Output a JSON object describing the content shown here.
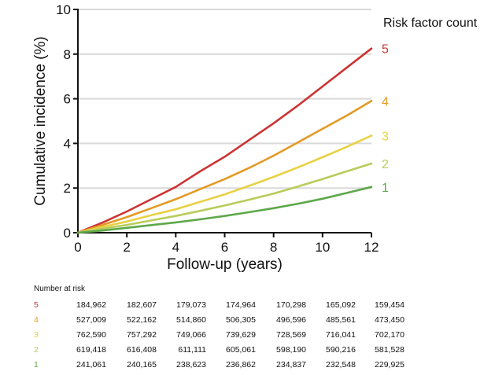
{
  "chart_data": {
    "type": "line",
    "title": "",
    "xlabel": "Follow-up (years)",
    "ylabel": "Cumulative incidence (%)",
    "xlim": [
      0,
      12
    ],
    "ylim": [
      0,
      10
    ],
    "xticks": [
      0,
      2,
      4,
      6,
      8,
      10,
      12
    ],
    "yticks": [
      0,
      2,
      4,
      6,
      8,
      10
    ],
    "grid": "horizontal",
    "legend_title": "Risk factor count",
    "legend_placement": "top-right, labels at line ends",
    "x": [
      0,
      1,
      2,
      3,
      4,
      5,
      6,
      7,
      8,
      9,
      10,
      11,
      12
    ],
    "series": [
      {
        "name": "5",
        "color": "#cc3333",
        "values": [
          0,
          0.45,
          0.95,
          1.5,
          2.05,
          2.75,
          3.4,
          4.15,
          4.9,
          5.7,
          6.55,
          7.4,
          8.25
        ]
      },
      {
        "name": "4",
        "color": "#e39a24",
        "values": [
          0,
          0.35,
          0.7,
          1.1,
          1.5,
          1.95,
          2.4,
          2.9,
          3.45,
          4.05,
          4.65,
          5.25,
          5.9
        ]
      },
      {
        "name": "3",
        "color": "#e8d143",
        "values": [
          0,
          0.26,
          0.5,
          0.78,
          1.05,
          1.38,
          1.72,
          2.1,
          2.5,
          2.93,
          3.38,
          3.85,
          4.35
        ]
      },
      {
        "name": "2",
        "color": "#b8cc5a",
        "values": [
          0,
          0.18,
          0.35,
          0.55,
          0.75,
          0.98,
          1.22,
          1.48,
          1.75,
          2.07,
          2.4,
          2.75,
          3.1
        ]
      },
      {
        "name": "1",
        "color": "#5da84a",
        "values": [
          0,
          0.1,
          0.22,
          0.34,
          0.46,
          0.6,
          0.75,
          0.92,
          1.1,
          1.3,
          1.52,
          1.78,
          2.05
        ]
      }
    ],
    "number_at_risk": {
      "title": "Number at risk",
      "rows": [
        {
          "group": "5",
          "color": "#cc3333",
          "values": [
            "184,962",
            "182,607",
            "179,073",
            "174,964",
            "170,298",
            "165,092",
            "159,454"
          ]
        },
        {
          "group": "4",
          "color": "#e39a24",
          "values": [
            "527,009",
            "522,162",
            "514,860",
            "506,305",
            "496,596",
            "485,561",
            "473,450"
          ]
        },
        {
          "group": "3",
          "color": "#e8d143",
          "values": [
            "762,590",
            "757,292",
            "749,066",
            "739,629",
            "728,569",
            "716,041",
            "702,170"
          ]
        },
        {
          "group": "2",
          "color": "#b8cc5a",
          "values": [
            "619,418",
            "616,408",
            "611,111",
            "605,061",
            "598,190",
            "590,216",
            "581,528"
          ]
        },
        {
          "group": "1",
          "color": "#5da84a",
          "values": [
            "241,061",
            "240,165",
            "238,623",
            "236,862",
            "234,837",
            "232,548",
            "229,925"
          ]
        }
      ]
    }
  }
}
